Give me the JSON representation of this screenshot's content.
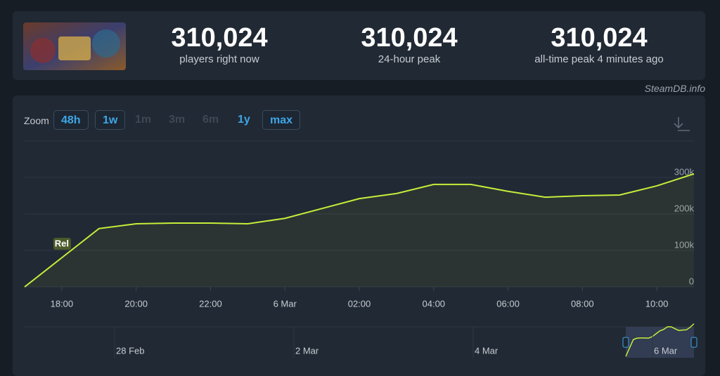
{
  "header": {
    "stats": [
      {
        "value": "310,024",
        "label": "players right now"
      },
      {
        "value": "310,024",
        "label": "24-hour peak"
      },
      {
        "value": "310,024",
        "label": "all-time peak 4 minutes ago"
      }
    ],
    "credit": "SteamDB.info"
  },
  "toolbar": {
    "label": "Zoom",
    "options": [
      "48h",
      "1w",
      "1m",
      "3m",
      "6m",
      "1y",
      "max"
    ],
    "enabled": [
      true,
      true,
      false,
      false,
      false,
      true,
      true
    ],
    "selected": [
      true,
      true,
      false,
      false,
      false,
      false,
      true
    ]
  },
  "chart_data": {
    "type": "line",
    "x": [
      17,
      18,
      19,
      20,
      21,
      22,
      23,
      24,
      25,
      26,
      27,
      28,
      29,
      30,
      31,
      32,
      33,
      34,
      35
    ],
    "series": [
      {
        "name": "Players",
        "color": "#c6ee3a",
        "values": [
          0,
          80,
          160,
          173,
          175,
          175,
          173,
          188,
          215,
          242,
          256,
          281,
          281,
          262,
          246,
          250,
          252,
          277,
          310
        ]
      }
    ],
    "xlim": [
      17,
      35
    ],
    "xticks": [
      {
        "value": 18,
        "label": "18:00"
      },
      {
        "value": 20,
        "label": "20:00"
      },
      {
        "value": 22,
        "label": "22:00"
      },
      {
        "value": 24,
        "label": "6 Mar"
      },
      {
        "value": 26,
        "label": "02:00"
      },
      {
        "value": 28,
        "label": "04:00"
      },
      {
        "value": 30,
        "label": "06:00"
      },
      {
        "value": 32,
        "label": "08:00"
      },
      {
        "value": 34,
        "label": "10:00"
      }
    ],
    "ylim": [
      0,
      400
    ],
    "yticks": [
      0,
      {
        "value": 100,
        "label": "100k"
      },
      {
        "value": 200,
        "label": "200k"
      },
      {
        "value": 300,
        "label": "300k"
      }
    ],
    "grid": true,
    "annotations": [
      {
        "x": 18,
        "text": "Rel"
      }
    ],
    "navigator_labels": [
      "28 Feb",
      "2 Mar",
      "4 Mar",
      "6 Mar"
    ]
  }
}
